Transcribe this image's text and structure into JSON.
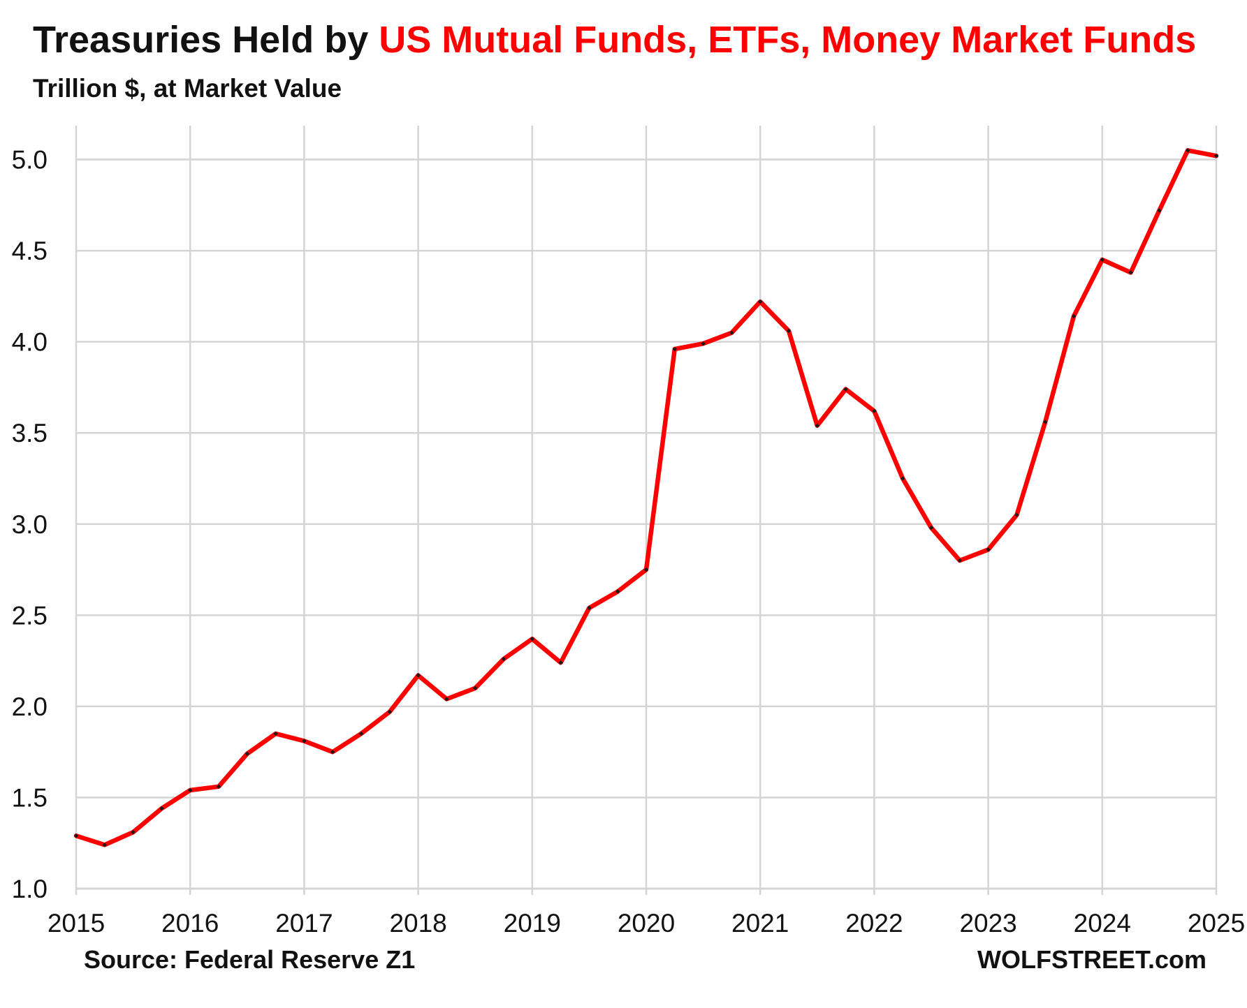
{
  "colors": {
    "title_dark": "#111111",
    "title_accent": "#ff0000",
    "series_line": "#ff0000",
    "series_marker": "#1a1a1a",
    "grid": "#d4d4d4"
  },
  "chart_data": {
    "type": "line",
    "title_prefix": "Treasuries Held by ",
    "title_highlight": "US Mutual Funds, ETFs, Money Market Funds",
    "subtitle": "Trillion $, at Market Value",
    "xlabel": "",
    "ylabel": "",
    "source": "Source: Federal Reserve Z1",
    "brand": "WOLFSTREET.com",
    "ylim": [
      1.0,
      5.0
    ],
    "xlim": [
      2015,
      2025
    ],
    "y_ticks": [
      "1.0",
      "1.5",
      "2.0",
      "2.5",
      "3.0",
      "3.5",
      "4.0",
      "4.5",
      "5.0"
    ],
    "x_ticks": [
      "2015",
      "2016",
      "2017",
      "2018",
      "2019",
      "2020",
      "2021",
      "2022",
      "2023",
      "2024",
      "2025"
    ],
    "grid": true,
    "legend": "none",
    "series": [
      {
        "x": [
          2015.0,
          2015.25,
          2015.5,
          2015.75,
          2016.0,
          2016.25,
          2016.5,
          2016.75,
          2017.0,
          2017.25,
          2017.5,
          2017.75,
          2018.0,
          2018.25,
          2018.5,
          2018.75,
          2019.0,
          2019.25,
          2019.5,
          2019.75,
          2020.0,
          2020.25,
          2020.5,
          2020.75,
          2021.0,
          2021.25,
          2021.5,
          2021.75,
          2022.0,
          2022.25,
          2022.5,
          2022.75,
          2023.0,
          2023.25,
          2023.5,
          2023.75,
          2024.0,
          2024.25,
          2024.5,
          2024.75,
          2025.0
        ],
        "values": [
          1.29,
          1.24,
          1.31,
          1.44,
          1.54,
          1.56,
          1.74,
          1.85,
          1.81,
          1.75,
          1.85,
          1.97,
          2.17,
          2.04,
          2.1,
          2.26,
          2.37,
          2.24,
          2.54,
          2.63,
          2.75,
          3.96,
          3.99,
          4.05,
          4.22,
          4.06,
          3.54,
          3.74,
          3.62,
          3.25,
          2.98,
          2.8,
          2.86,
          3.05,
          3.56,
          4.14,
          4.45,
          4.38,
          4.72,
          5.05,
          5.02
        ]
      }
    ]
  }
}
